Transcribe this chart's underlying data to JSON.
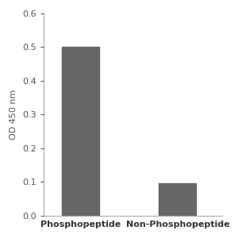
{
  "categories": [
    "Phosphopeptide",
    "Non-Phosphopeptide"
  ],
  "values": [
    0.5,
    0.095
  ],
  "bar_color": "#666666",
  "ylabel": "OD 450 nm",
  "ylim": [
    0,
    0.6
  ],
  "yticks": [
    0,
    0.1,
    0.2,
    0.3,
    0.4,
    0.5,
    0.6
  ],
  "bar_width": 0.5,
  "background_color": "#ffffff",
  "tick_fontsize": 8,
  "label_fontsize": 8,
  "x_positions": [
    0.5,
    1.8
  ],
  "xlim": [
    0.0,
    2.4
  ]
}
